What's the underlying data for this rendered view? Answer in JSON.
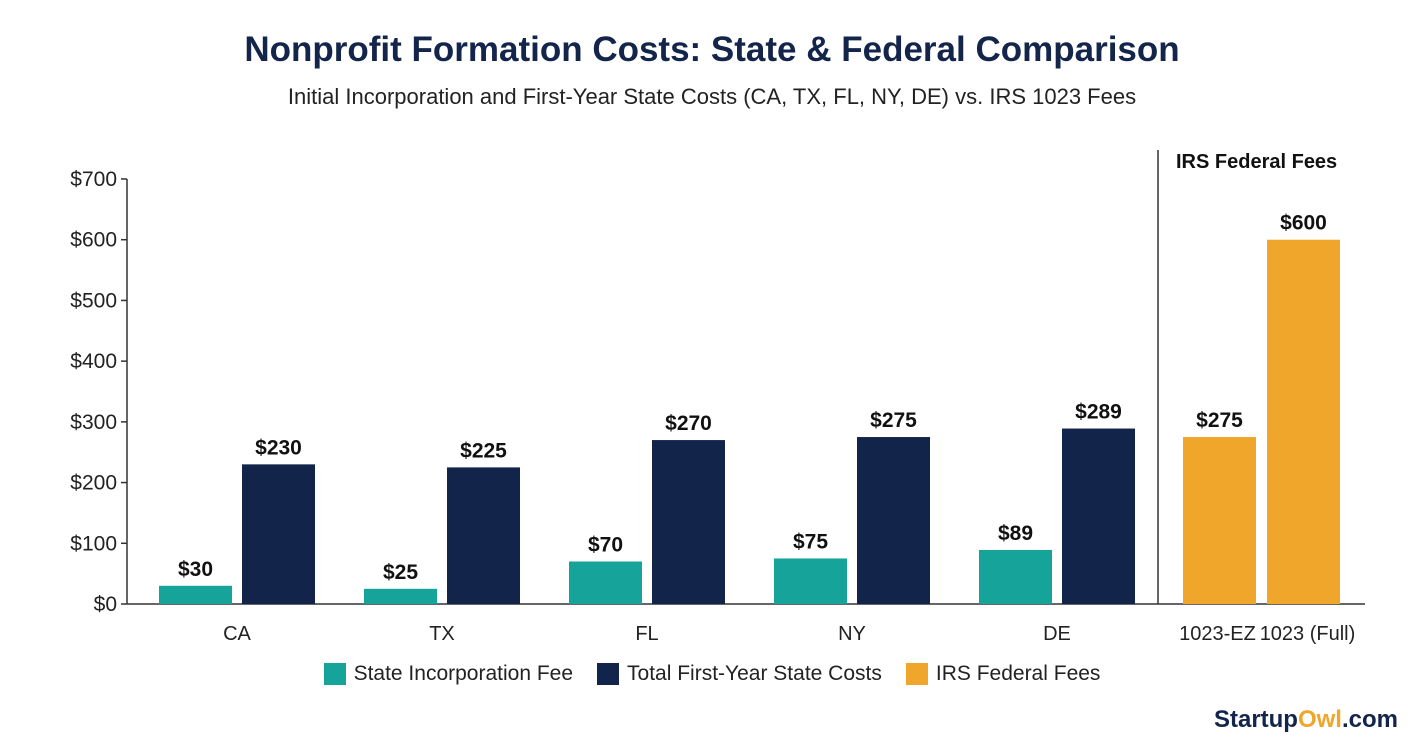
{
  "chart_data": {
    "type": "bar",
    "title": "Nonprofit Formation Costs: State & Federal Comparison",
    "subtitle": "Initial Incorporation and First-Year State Costs (CA, TX, FL, NY, DE) vs. IRS 1023 Fees",
    "ylim": [
      0,
      700
    ],
    "yticks": [
      "$0",
      "$100",
      "$200",
      "$300",
      "$400",
      "$500",
      "$600",
      "$700"
    ],
    "ytick_values": [
      0,
      100,
      200,
      300,
      400,
      500,
      600,
      700
    ],
    "grid": false,
    "categories": [
      "CA",
      "TX",
      "FL",
      "NY",
      "DE"
    ],
    "series": [
      {
        "name": "State Incorporation Fee",
        "color": "#16a39a",
        "values": [
          30,
          25,
          70,
          75,
          89
        ],
        "labels": [
          "$30",
          "$25",
          "$70",
          "$75",
          "$89"
        ]
      },
      {
        "name": "Total First-Year State Costs",
        "color": "#12244a",
        "values": [
          230,
          225,
          270,
          275,
          289
        ],
        "labels": [
          "$230",
          "$225",
          "$270",
          "$275",
          "$289"
        ]
      }
    ],
    "federal": {
      "section_label": "IRS Federal Fees",
      "name": "IRS Federal Fees",
      "color": "#f0a62b",
      "categories": [
        "1023-EZ",
        "1023 (Full)"
      ],
      "values": [
        275,
        600
      ],
      "labels": [
        "$275",
        "$600"
      ]
    },
    "legend_position": "bottom"
  },
  "brand": {
    "part1": "Startup",
    "part2": "Owl",
    "part3": ".com",
    "accent": "#f0a62b"
  }
}
